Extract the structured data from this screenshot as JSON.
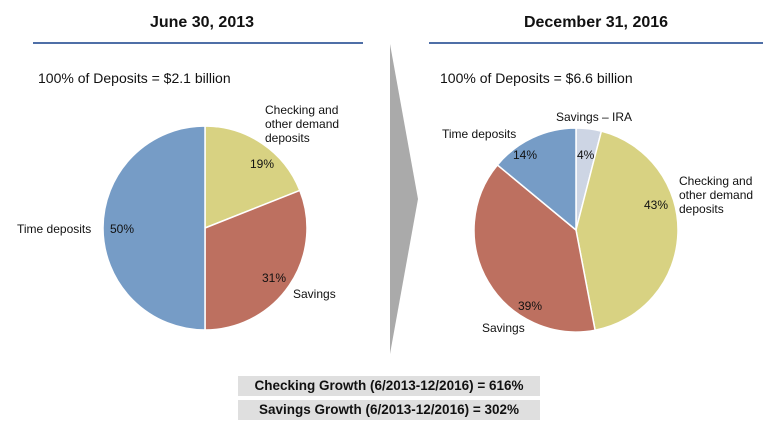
{
  "chart_data": [
    {
      "type": "pie",
      "title": "June 30, 2013",
      "subtitle": "100% of Deposits = $2.1 billion",
      "slices": [
        {
          "label": "Checking and other demand deposits",
          "value": 19,
          "value_label": "19%",
          "color": "#d8d282"
        },
        {
          "label": "Savings",
          "value": 31,
          "value_label": "31%",
          "color": "#bd7060"
        },
        {
          "label": "Time deposits",
          "value": 50,
          "value_label": "50%",
          "color": "#769cc6"
        }
      ]
    },
    {
      "type": "pie",
      "title": "December 31, 2016",
      "subtitle": "100% of Deposits = $6.6 billion",
      "slices": [
        {
          "label": "Savings – IRA",
          "value": 4,
          "value_label": "4%",
          "color": "#cdd5e4"
        },
        {
          "label": "Checking and other demand deposits",
          "value": 43,
          "value_label": "43%",
          "color": "#d8d282"
        },
        {
          "label": "Savings",
          "value": 39,
          "value_label": "39%",
          "color": "#bd7060"
        },
        {
          "label": "Time deposits",
          "value": 14,
          "value_label": "14%",
          "color": "#769cc6"
        }
      ]
    }
  ],
  "labels": {
    "left_checking": [
      "Checking and",
      "other demand",
      "deposits"
    ],
    "right_checking": [
      "Checking and",
      "other demand",
      "deposits"
    ]
  },
  "growth": {
    "checking": "Checking Growth (6/2013-12/2016) = 616%",
    "savings": "Savings Growth (6/2013-12/2016) = 302%"
  },
  "colors": {
    "title_rule": "#4f6fa7",
    "arrow": "#aaaaaa",
    "growth_box": "#dfdfdf"
  }
}
